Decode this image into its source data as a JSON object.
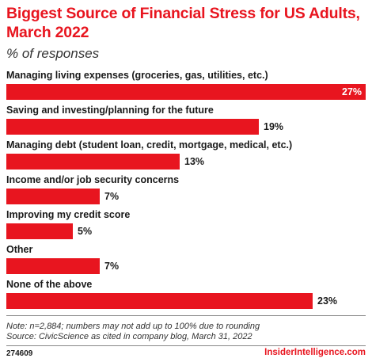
{
  "header": {
    "title": "Biggest Source of Financial Stress for US Adults, March 2022",
    "subtitle": "% of responses"
  },
  "chart_data": {
    "type": "bar",
    "orientation": "horizontal",
    "categories": [
      "Managing living expenses (groceries, gas, utilities, etc.)",
      "Saving and investing/planning for the future",
      "Managing debt (student loan, credit, mortgage, medical, etc.)",
      "Income and/or job security concerns",
      "Improving my credit score",
      "Other",
      "None of the above"
    ],
    "values": [
      27,
      19,
      13,
      7,
      5,
      7,
      23
    ],
    "value_labels": [
      "27%",
      "19%",
      "13%",
      "7%",
      "5%",
      "7%",
      "23%"
    ],
    "bar_color": "#e8151f",
    "xlim": [
      0,
      27
    ],
    "grid": false
  },
  "footer": {
    "note_line1": "Note: n=2,884; numbers may not add up to 100% due to rounding",
    "note_line2": "Source: CivicScience as cited in company blog, March 31, 2022",
    "chart_id": "274609",
    "brand": "InsiderIntelligence.com"
  }
}
